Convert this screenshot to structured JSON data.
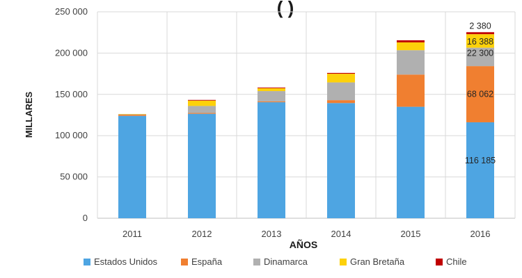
{
  "chart_data": {
    "type": "bar",
    "stacked": true,
    "title": "(          )",
    "xlabel": "AÑOS",
    "ylabel": "MILLARES",
    "ylim": [
      0,
      250000
    ],
    "yticks": [
      0,
      50000,
      100000,
      150000,
      200000,
      250000
    ],
    "ytick_labels": [
      "0",
      "50 000",
      "100 000",
      "150 000",
      "200 000",
      "250 000"
    ],
    "grid": true,
    "legend_position": "bottom",
    "categories": [
      "2011",
      "2012",
      "2013",
      "2014",
      "2015",
      "2016"
    ],
    "series": [
      {
        "name": "Estados Unidos",
        "color": "#4ea5e2",
        "values": [
          124000,
          126500,
          140500,
          139500,
          135000,
          116185
        ]
      },
      {
        "name": "España",
        "color": "#f07f30",
        "values": [
          1500,
          1000,
          1000,
          3500,
          39000,
          68062
        ]
      },
      {
        "name": "Dinamarca",
        "color": "#b0b0b0",
        "values": [
          500,
          8500,
          12500,
          21500,
          29500,
          22300
        ]
      },
      {
        "name": "Gran Bretaña",
        "color": "#fdd10a",
        "values": [
          300,
          6500,
          3500,
          10500,
          9500,
          16388
        ]
      },
      {
        "name": "Chile",
        "color": "#c00000",
        "values": [
          0,
          800,
          800,
          1000,
          2500,
          2380
        ]
      }
    ],
    "data_labels": [
      {
        "category": "2016",
        "series": "Estados Unidos",
        "text": "116 185"
      },
      {
        "category": "2016",
        "series": "España",
        "text": "68 062"
      },
      {
        "category": "2016",
        "series": "Dinamarca",
        "text": "22 300"
      },
      {
        "category": "2016",
        "series": "Gran Bretaña",
        "text": "16 388"
      },
      {
        "category": "2016",
        "series": "Chile",
        "text": "2 380"
      }
    ]
  }
}
